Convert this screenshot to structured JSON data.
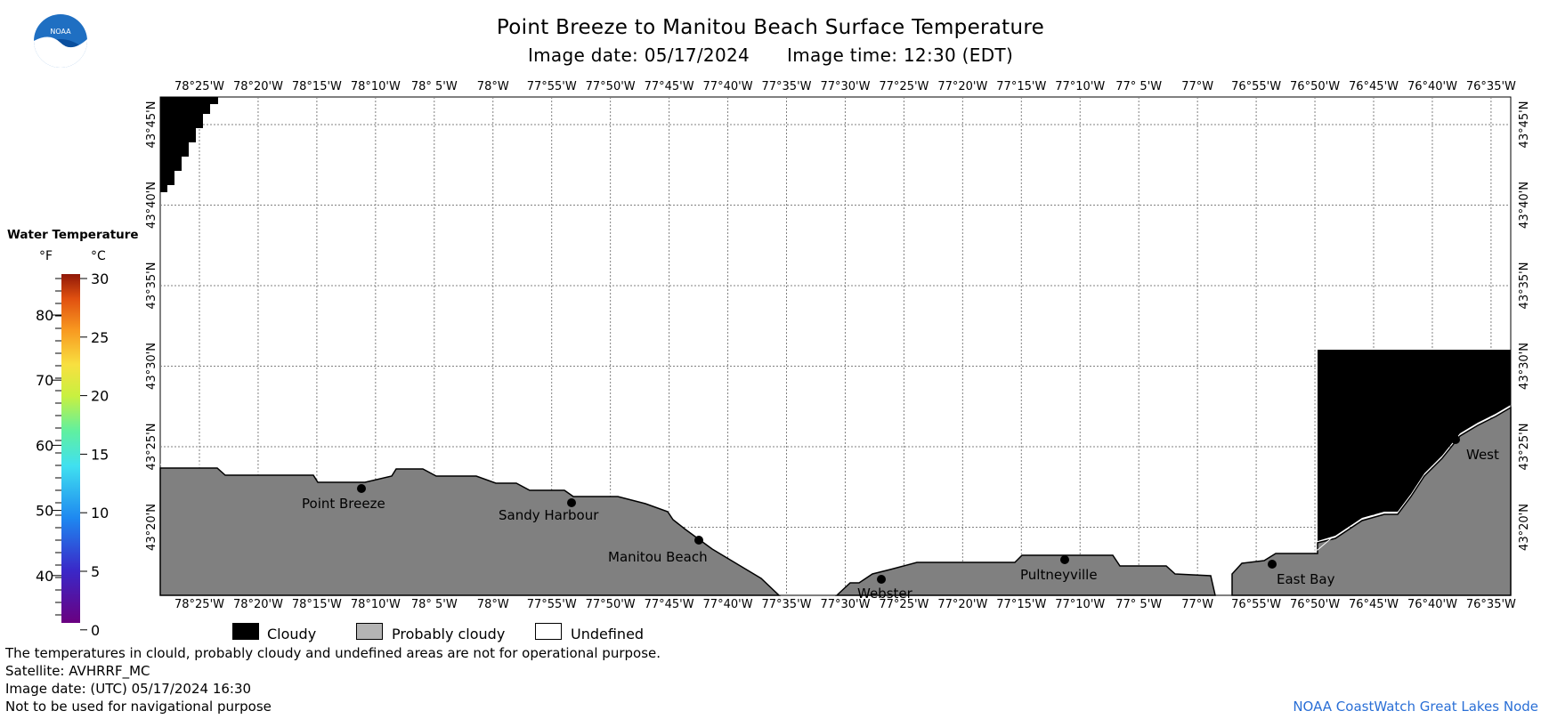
{
  "header": {
    "title": "Point Breeze to Manitou Beach Surface Temperature",
    "image_date": "Image date: 05/17/2024",
    "image_time": "Image time: 12:30 (EDT)"
  },
  "logo": {
    "text": "NOAA",
    "icon": "noaa-logo-icon"
  },
  "legend_scale": {
    "title": "Water Temperature",
    "unit_f": "°F",
    "unit_c": "°C",
    "f_ticks": [
      "80",
      "70",
      "60",
      "50",
      "40"
    ],
    "c_ticks": [
      "30",
      "25",
      "20",
      "15",
      "10",
      "5",
      "0"
    ]
  },
  "map": {
    "lon_labels": [
      "78°25'W",
      "78°20'W",
      "78°15'W",
      "78°10'W",
      "78° 5'W",
      "78°W",
      "77°55'W",
      "77°50'W",
      "77°45'W",
      "77°40'W",
      "77°35'W",
      "77°30'W",
      "77°25'W",
      "77°20'W",
      "77°15'W",
      "77°10'W",
      "77° 5'W",
      "77°W",
      "76°55'W",
      "76°50'W",
      "76°45'W",
      "76°40'W",
      "76°35'W"
    ],
    "lat_labels": [
      "43°45'N",
      "43°40'N",
      "43°35'N",
      "43°30'N",
      "43°25'N",
      "43°20'N"
    ],
    "places": [
      {
        "name": "Point Breeze"
      },
      {
        "name": "Sandy Harbour"
      },
      {
        "name": "Manitou Beach"
      },
      {
        "name": "Webster"
      },
      {
        "name": "Pultneyville"
      },
      {
        "name": "East Bay"
      },
      {
        "name": "West"
      }
    ],
    "colors": {
      "cloudy": "#000000",
      "probably_cloudy": "#808080",
      "undefined": "#ffffff",
      "grid": "#808080"
    }
  },
  "legend": {
    "cloudy": "Cloudy",
    "probably_cloudy": "Probably cloudy",
    "undefined": "Undefined"
  },
  "footer": {
    "line1": "The temperatures in clould, probably cloudy and undefined areas are not for operational purpose.",
    "line2": "Satellite: AVHRRF_MC",
    "line3": "Image date: (UTC) 05/17/2024  16:30",
    "line4": "Not to be used for navigational purpose"
  },
  "credit": "NOAA CoastWatch Great Lakes Node"
}
